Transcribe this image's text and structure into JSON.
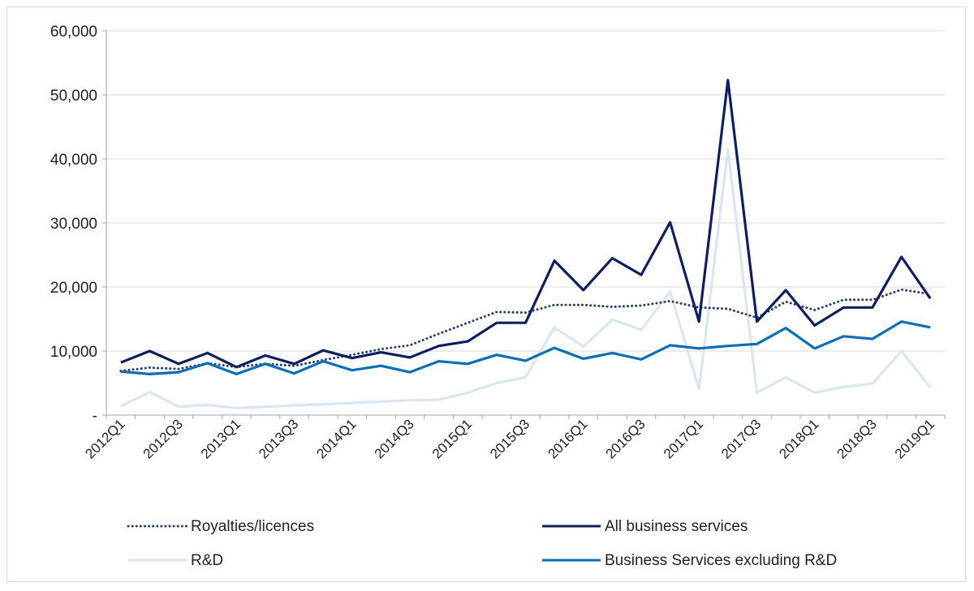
{
  "chart_data": {
    "type": "line",
    "title": "",
    "xlabel": "",
    "ylabel": "",
    "ylim": [
      0,
      60000
    ],
    "yticks": [
      0,
      10000,
      20000,
      30000,
      40000,
      50000,
      60000
    ],
    "ytick_labels": [
      "-",
      "10,000",
      "20,000",
      "30,000",
      "40,000",
      "50,000",
      "60,000"
    ],
    "grid": "horizontal",
    "legend_position": "bottom",
    "x": [
      "2012Q1",
      "2012Q2",
      "2012Q3",
      "2012Q4",
      "2013Q1",
      "2013Q2",
      "2013Q3",
      "2013Q4",
      "2014Q1",
      "2014Q2",
      "2014Q3",
      "2014Q4",
      "2015Q1",
      "2015Q2",
      "2015Q3",
      "2015Q4",
      "2016Q1",
      "2016Q2",
      "2016Q3",
      "2016Q4",
      "2017Q1",
      "2017Q2",
      "2017Q3",
      "2017Q4",
      "2018Q1",
      "2018Q2",
      "2018Q3",
      "2018Q4",
      "2019Q1"
    ],
    "xtick_labels": [
      "2012Q1",
      "2012Q3",
      "2013Q1",
      "2013Q3",
      "2014Q1",
      "2014Q3",
      "2015Q1",
      "2015Q3",
      "2016Q1",
      "2016Q3",
      "2017Q1",
      "2017Q3",
      "2018Q1",
      "2018Q3",
      "2019Q1"
    ],
    "series": [
      {
        "name": "Royalties/licences",
        "color": "#2e3f66",
        "style": "dotted",
        "values": [
          6900,
          7400,
          7200,
          8100,
          7500,
          8000,
          7700,
          8600,
          9400,
          10300,
          10900,
          12700,
          14400,
          16100,
          16000,
          17200,
          17200,
          16900,
          17100,
          17800,
          16800,
          16600,
          15200,
          17700,
          16400,
          18000,
          18000,
          19600,
          18900
        ]
      },
      {
        "name": "All business services",
        "color": "#0f1f5c",
        "style": "solid",
        "values": [
          8200,
          10000,
          8000,
          9700,
          7500,
          9300,
          8000,
          10100,
          8900,
          9800,
          9000,
          10800,
          11500,
          14400,
          14400,
          24100,
          19500,
          24500,
          21900,
          30100,
          14600,
          52300,
          14600,
          19500,
          14000,
          16800,
          16800,
          24700,
          18200
        ]
      },
      {
        "name": "R&D",
        "color": "#dce6f1",
        "style": "solid",
        "values": [
          1400,
          3600,
          1300,
          1600,
          1100,
          1300,
          1500,
          1700,
          1900,
          2100,
          2300,
          2400,
          3500,
          5000,
          5900,
          13700,
          10700,
          14900,
          13300,
          19300,
          4000,
          41500,
          3500,
          5900,
          3500,
          4400,
          4900,
          10000,
          4300
        ]
      },
      {
        "name": "Business Services excluding R&D",
        "color": "#0b6db3",
        "style": "solid",
        "values": [
          6800,
          6400,
          6700,
          8100,
          6400,
          8000,
          6500,
          8400,
          7000,
          7700,
          6700,
          8400,
          8000,
          9400,
          8500,
          10500,
          8800,
          9700,
          8700,
          10900,
          10400,
          10800,
          11100,
          13600,
          10400,
          12300,
          11900,
          14600,
          13700
        ]
      }
    ]
  }
}
